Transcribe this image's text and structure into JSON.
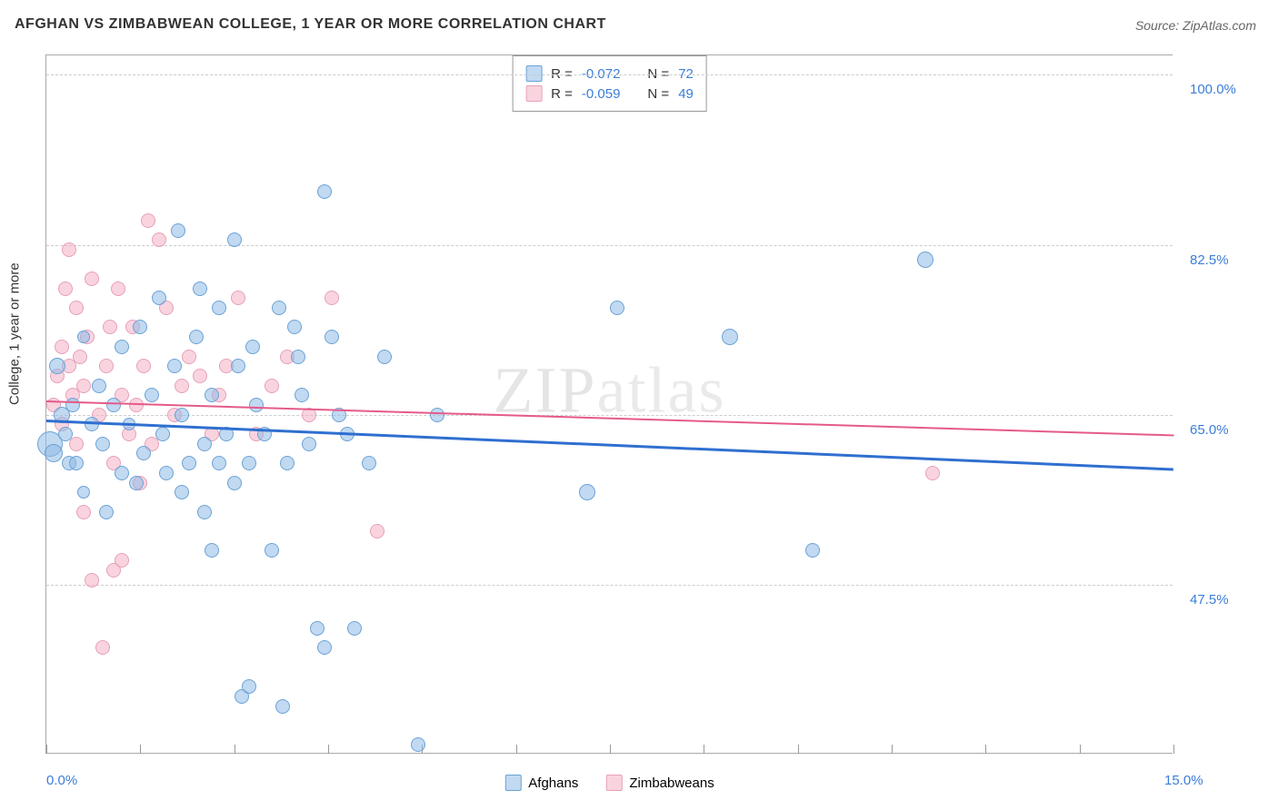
{
  "title": "AFGHAN VS ZIMBABWEAN COLLEGE, 1 YEAR OR MORE CORRELATION CHART",
  "source": "Source: ZipAtlas.com",
  "ylabel": "College, 1 year or more",
  "watermark": "ZIPatlas",
  "chart": {
    "type": "scatter",
    "xlim": [
      0,
      15
    ],
    "ylim": [
      30,
      102
    ],
    "xtick_labels": [
      "0.0%",
      "15.0%"
    ],
    "ytick_values": [
      47.5,
      65.0,
      82.5,
      100.0
    ],
    "ytick_labels": [
      "47.5%",
      "65.0%",
      "82.5%",
      "100.0%"
    ],
    "xtick_marks": [
      0,
      1.25,
      2.5,
      3.75,
      5.0,
      6.25,
      7.5,
      8.75,
      10.0,
      11.25,
      12.5,
      13.75,
      15.0
    ],
    "background_color": "#ffffff",
    "grid_color": "#cccccc",
    "axis_color": "#aaaaaa",
    "tick_label_color": "#3b7dd8",
    "series_a": {
      "name": "Afghans",
      "fill": "rgba(142,186,229,0.55)",
      "stroke": "#6ba3d6",
      "r_value": "-0.072",
      "n_value": "72",
      "trend": {
        "x1": 0,
        "y1": 64.5,
        "x2": 15,
        "y2": 59.5,
        "color": "#2f6fd0",
        "width": 3
      },
      "points": [
        {
          "x": 0.05,
          "y": 62,
          "r": 14
        },
        {
          "x": 0.1,
          "y": 61,
          "r": 10
        },
        {
          "x": 0.15,
          "y": 70,
          "r": 9
        },
        {
          "x": 0.2,
          "y": 65,
          "r": 9
        },
        {
          "x": 0.25,
          "y": 63,
          "r": 8
        },
        {
          "x": 0.3,
          "y": 60,
          "r": 8
        },
        {
          "x": 0.35,
          "y": 66,
          "r": 8
        },
        {
          "x": 0.4,
          "y": 60,
          "r": 8
        },
        {
          "x": 0.5,
          "y": 57,
          "r": 7
        },
        {
          "x": 0.5,
          "y": 73,
          "r": 7
        },
        {
          "x": 0.6,
          "y": 64,
          "r": 8
        },
        {
          "x": 0.7,
          "y": 68,
          "r": 8
        },
        {
          "x": 0.75,
          "y": 62,
          "r": 8
        },
        {
          "x": 0.8,
          "y": 55,
          "r": 8
        },
        {
          "x": 0.9,
          "y": 66,
          "r": 8
        },
        {
          "x": 1.0,
          "y": 59,
          "r": 8
        },
        {
          "x": 1.0,
          "y": 72,
          "r": 8
        },
        {
          "x": 1.1,
          "y": 64,
          "r": 7
        },
        {
          "x": 1.2,
          "y": 58,
          "r": 8
        },
        {
          "x": 1.25,
          "y": 74,
          "r": 8
        },
        {
          "x": 1.3,
          "y": 61,
          "r": 8
        },
        {
          "x": 1.4,
          "y": 67,
          "r": 8
        },
        {
          "x": 1.5,
          "y": 77,
          "r": 8
        },
        {
          "x": 1.55,
          "y": 63,
          "r": 8
        },
        {
          "x": 1.6,
          "y": 59,
          "r": 8
        },
        {
          "x": 1.7,
          "y": 70,
          "r": 8
        },
        {
          "x": 1.75,
          "y": 84,
          "r": 8
        },
        {
          "x": 1.8,
          "y": 57,
          "r": 8
        },
        {
          "x": 1.8,
          "y": 65,
          "r": 8
        },
        {
          "x": 1.9,
          "y": 60,
          "r": 8
        },
        {
          "x": 2.0,
          "y": 73,
          "r": 8
        },
        {
          "x": 2.05,
          "y": 78,
          "r": 8
        },
        {
          "x": 2.1,
          "y": 62,
          "r": 8
        },
        {
          "x": 2.1,
          "y": 55,
          "r": 8
        },
        {
          "x": 2.2,
          "y": 67,
          "r": 8
        },
        {
          "x": 2.2,
          "y": 51,
          "r": 8
        },
        {
          "x": 2.3,
          "y": 76,
          "r": 8
        },
        {
          "x": 2.3,
          "y": 60,
          "r": 8
        },
        {
          "x": 2.4,
          "y": 63,
          "r": 8
        },
        {
          "x": 2.5,
          "y": 83,
          "r": 8
        },
        {
          "x": 2.5,
          "y": 58,
          "r": 8
        },
        {
          "x": 2.55,
          "y": 70,
          "r": 8
        },
        {
          "x": 2.6,
          "y": 36,
          "r": 8
        },
        {
          "x": 2.7,
          "y": 37,
          "r": 8
        },
        {
          "x": 2.7,
          "y": 60,
          "r": 8
        },
        {
          "x": 2.75,
          "y": 72,
          "r": 8
        },
        {
          "x": 2.8,
          "y": 66,
          "r": 8
        },
        {
          "x": 2.9,
          "y": 63,
          "r": 8
        },
        {
          "x": 3.0,
          "y": 51,
          "r": 8
        },
        {
          "x": 3.1,
          "y": 76,
          "r": 8
        },
        {
          "x": 3.15,
          "y": 35,
          "r": 8
        },
        {
          "x": 3.2,
          "y": 60,
          "r": 8
        },
        {
          "x": 3.3,
          "y": 74,
          "r": 8
        },
        {
          "x": 3.35,
          "y": 71,
          "r": 8
        },
        {
          "x": 3.4,
          "y": 67,
          "r": 8
        },
        {
          "x": 3.5,
          "y": 62,
          "r": 8
        },
        {
          "x": 3.6,
          "y": 43,
          "r": 8
        },
        {
          "x": 3.7,
          "y": 88,
          "r": 8
        },
        {
          "x": 3.7,
          "y": 41,
          "r": 8
        },
        {
          "x": 3.8,
          "y": 73,
          "r": 8
        },
        {
          "x": 3.9,
          "y": 65,
          "r": 8
        },
        {
          "x": 4.0,
          "y": 63,
          "r": 8
        },
        {
          "x": 4.1,
          "y": 43,
          "r": 8
        },
        {
          "x": 4.3,
          "y": 60,
          "r": 8
        },
        {
          "x": 4.5,
          "y": 71,
          "r": 8
        },
        {
          "x": 4.95,
          "y": 31,
          "r": 8
        },
        {
          "x": 5.2,
          "y": 65,
          "r": 8
        },
        {
          "x": 7.2,
          "y": 57,
          "r": 9
        },
        {
          "x": 7.6,
          "y": 76,
          "r": 8
        },
        {
          "x": 9.1,
          "y": 73,
          "r": 9
        },
        {
          "x": 10.2,
          "y": 51,
          "r": 8
        },
        {
          "x": 11.7,
          "y": 81,
          "r": 9
        }
      ]
    },
    "series_b": {
      "name": "Zimbabweans",
      "fill": "rgba(244,176,196,0.55)",
      "stroke": "#e7a0b8",
      "r_value": "-0.059",
      "n_value": "49",
      "trend": {
        "x1": 0,
        "y1": 66.5,
        "x2": 15,
        "y2": 63.0,
        "color": "#e55a8a",
        "width": 2
      },
      "points": [
        {
          "x": 0.1,
          "y": 66,
          "r": 8
        },
        {
          "x": 0.15,
          "y": 69,
          "r": 8
        },
        {
          "x": 0.2,
          "y": 72,
          "r": 8
        },
        {
          "x": 0.2,
          "y": 64,
          "r": 8
        },
        {
          "x": 0.25,
          "y": 78,
          "r": 8
        },
        {
          "x": 0.3,
          "y": 70,
          "r": 8
        },
        {
          "x": 0.3,
          "y": 82,
          "r": 8
        },
        {
          "x": 0.35,
          "y": 67,
          "r": 8
        },
        {
          "x": 0.4,
          "y": 76,
          "r": 8
        },
        {
          "x": 0.4,
          "y": 62,
          "r": 8
        },
        {
          "x": 0.45,
          "y": 71,
          "r": 8
        },
        {
          "x": 0.5,
          "y": 55,
          "r": 8
        },
        {
          "x": 0.5,
          "y": 68,
          "r": 8
        },
        {
          "x": 0.55,
          "y": 73,
          "r": 8
        },
        {
          "x": 0.6,
          "y": 79,
          "r": 8
        },
        {
          "x": 0.6,
          "y": 48,
          "r": 8
        },
        {
          "x": 0.7,
          "y": 65,
          "r": 8
        },
        {
          "x": 0.75,
          "y": 41,
          "r": 8
        },
        {
          "x": 0.8,
          "y": 70,
          "r": 8
        },
        {
          "x": 0.85,
          "y": 74,
          "r": 8
        },
        {
          "x": 0.9,
          "y": 60,
          "r": 8
        },
        {
          "x": 0.9,
          "y": 49,
          "r": 8
        },
        {
          "x": 0.95,
          "y": 78,
          "r": 8
        },
        {
          "x": 1.0,
          "y": 67,
          "r": 8
        },
        {
          "x": 1.0,
          "y": 50,
          "r": 8
        },
        {
          "x": 1.1,
          "y": 63,
          "r": 8
        },
        {
          "x": 1.15,
          "y": 74,
          "r": 8
        },
        {
          "x": 1.2,
          "y": 66,
          "r": 8
        },
        {
          "x": 1.25,
          "y": 58,
          "r": 8
        },
        {
          "x": 1.3,
          "y": 70,
          "r": 8
        },
        {
          "x": 1.35,
          "y": 85,
          "r": 8
        },
        {
          "x": 1.4,
          "y": 62,
          "r": 8
        },
        {
          "x": 1.5,
          "y": 83,
          "r": 8
        },
        {
          "x": 1.6,
          "y": 76,
          "r": 8
        },
        {
          "x": 1.7,
          "y": 65,
          "r": 8
        },
        {
          "x": 1.8,
          "y": 68,
          "r": 8
        },
        {
          "x": 1.9,
          "y": 71,
          "r": 8
        },
        {
          "x": 2.05,
          "y": 69,
          "r": 8
        },
        {
          "x": 2.2,
          "y": 63,
          "r": 8
        },
        {
          "x": 2.3,
          "y": 67,
          "r": 8
        },
        {
          "x": 2.4,
          "y": 70,
          "r": 8
        },
        {
          "x": 2.55,
          "y": 77,
          "r": 8
        },
        {
          "x": 2.8,
          "y": 63,
          "r": 8
        },
        {
          "x": 3.0,
          "y": 68,
          "r": 8
        },
        {
          "x": 3.2,
          "y": 71,
          "r": 8
        },
        {
          "x": 3.5,
          "y": 65,
          "r": 8
        },
        {
          "x": 3.8,
          "y": 77,
          "r": 8
        },
        {
          "x": 4.4,
          "y": 53,
          "r": 8
        },
        {
          "x": 11.8,
          "y": 59,
          "r": 8
        }
      ]
    }
  },
  "stats_labels": {
    "r": "R =",
    "n": "N ="
  }
}
